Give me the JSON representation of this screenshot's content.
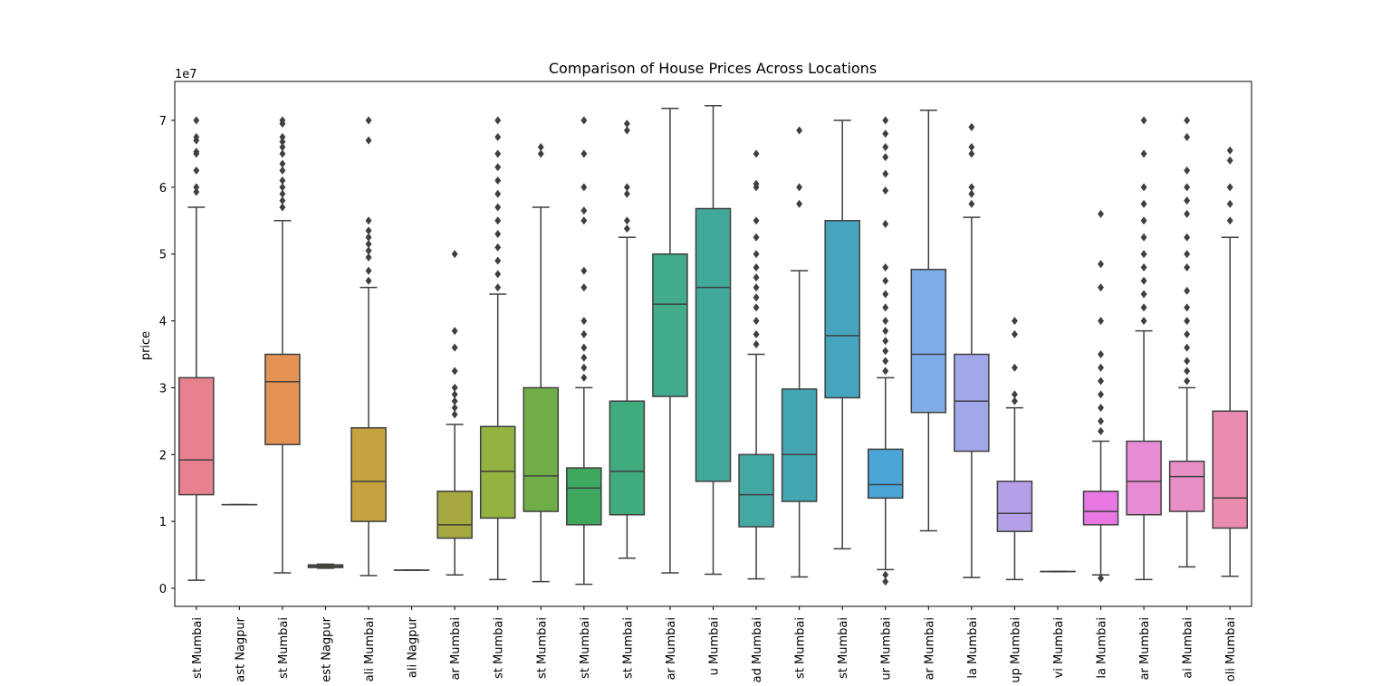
{
  "chart_data": {
    "type": "box",
    "title": "Comparison of House Prices Across Locations",
    "xlabel": "",
    "ylabel": "price",
    "y_offset_label": "1e7",
    "ylim": [
      -30000000,
      75500000
    ],
    "yticks": [
      0,
      10000000,
      20000000,
      30000000,
      40000000,
      50000000,
      60000000,
      70000000
    ],
    "ytick_labels": [
      "0",
      "1",
      "2",
      "3",
      "4",
      "5",
      "6",
      "7"
    ],
    "grid": false,
    "categories": [
      "st Mumbai",
      "ast Nagpur",
      "st Mumbai",
      "est Nagpur",
      "ali Mumbai",
      "ali Nagpur",
      "ar Mumbai",
      "st Mumbai",
      "st Mumbai",
      "st Mumbai",
      "st Mumbai",
      "ar Mumbai",
      "u Mumbai",
      "ad Mumbai",
      "st Mumbai",
      "st Mumbai",
      "ur Mumbai",
      "ar Mumbai",
      "la Mumbai",
      "up Mumbai",
      "vi Mumbai",
      "la Mumbai",
      "ar Mumbai",
      "ai Mumbai",
      "oli Mumbai"
    ],
    "boxes": [
      {
        "color": "#e8818f",
        "whislo": 1200000,
        "q1": 14000000,
        "med": 19200000,
        "q3": 31500000,
        "whishi": 57000000,
        "fliers": [
          59300000,
          60000000,
          62500000,
          65000000,
          65300000,
          67000000,
          67500000,
          70000000
        ]
      },
      {
        "color": "#e78c6f",
        "whislo": 12500000,
        "q1": 12500000,
        "med": 12500000,
        "q3": 12500000,
        "whishi": 12500000,
        "fliers": []
      },
      {
        "color": "#e39254",
        "whislo": 2300000,
        "q1": 21500000,
        "med": 30900000,
        "q3": 35000000,
        "whishi": 55000000,
        "fliers": [
          57000000,
          58000000,
          59000000,
          60000000,
          61000000,
          62500000,
          63500000,
          65000000,
          66000000,
          66800000,
          67500000,
          69500000,
          70000000
        ]
      },
      {
        "color": "#d4a03e",
        "whislo": 3000000,
        "q1": 3100000,
        "med": 3300000,
        "q3": 3500000,
        "whishi": 3600000,
        "fliers": []
      },
      {
        "color": "#c6a23e",
        "whislo": 1900000,
        "q1": 10000000,
        "med": 16000000,
        "q3": 24000000,
        "whishi": 45000000,
        "fliers": [
          46000000,
          47500000,
          49500000,
          50500000,
          51500000,
          52500000,
          53500000,
          55000000,
          67000000,
          70000000
        ]
      },
      {
        "color": "#b2a83e",
        "whislo": 2700000,
        "q1": 2700000,
        "med": 2700000,
        "q3": 2700000,
        "whishi": 2700000,
        "fliers": []
      },
      {
        "color": "#a5a93e",
        "whislo": 2000000,
        "q1": 7500000,
        "med": 9500000,
        "q3": 14500000,
        "whishi": 24500000,
        "fliers": [
          26000000,
          27000000,
          28000000,
          29000000,
          30000000,
          32500000,
          36000000,
          38500000,
          50000000
        ]
      },
      {
        "color": "#94b23f",
        "whislo": 1300000,
        "q1": 10500000,
        "med": 17500000,
        "q3": 24200000,
        "whishi": 44000000,
        "fliers": [
          45000000,
          47000000,
          49000000,
          51000000,
          53000000,
          55000000,
          57000000,
          59000000,
          61000000,
          63000000,
          65000000,
          67500000,
          70000000
        ]
      },
      {
        "color": "#6fae47",
        "whislo": 1000000,
        "q1": 11500000,
        "med": 16800000,
        "q3": 30000000,
        "whishi": 57000000,
        "fliers": [
          65000000,
          66000000
        ]
      },
      {
        "color": "#3ea95e",
        "whislo": 600000,
        "q1": 9500000,
        "med": 15000000,
        "q3": 18000000,
        "whishi": 30000000,
        "fliers": [
          31500000,
          33000000,
          34500000,
          36000000,
          38000000,
          40000000,
          45000000,
          47500000,
          55000000,
          56500000,
          60000000,
          65000000,
          70000000
        ]
      },
      {
        "color": "#40ac7e",
        "whislo": 4500000,
        "q1": 11000000,
        "med": 17500000,
        "q3": 28000000,
        "whishi": 52500000,
        "fliers": [
          53800000,
          55000000,
          59000000,
          60000000,
          68500000,
          69500000
        ]
      },
      {
        "color": "#42ab8c",
        "whislo": 2300000,
        "q1": 28700000,
        "med": 42500000,
        "q3": 50000000,
        "whishi": 71800000,
        "fliers": []
      },
      {
        "color": "#42a99a",
        "whislo": 2100000,
        "q1": 16000000,
        "med": 45000000,
        "q3": 56800000,
        "whishi": 72200000,
        "fliers": []
      },
      {
        "color": "#43a8a4",
        "whislo": 1400000,
        "q1": 9200000,
        "med": 14000000,
        "q3": 20000000,
        "whishi": 35000000,
        "fliers": [
          36500000,
          38000000,
          40000000,
          42000000,
          43500000,
          45000000,
          46500000,
          48000000,
          50000000,
          52500000,
          55000000,
          60000000,
          60500000,
          65000000
        ]
      },
      {
        "color": "#44a6b2",
        "whislo": 1700000,
        "q1": 13000000,
        "med": 20000000,
        "q3": 29800000,
        "whishi": 47500000,
        "fliers": [
          57500000,
          60000000,
          68500000
        ]
      },
      {
        "color": "#46a4be",
        "whislo": 5900000,
        "q1": 28500000,
        "med": 37800000,
        "q3": 55000000,
        "whishi": 70000000,
        "fliers": []
      },
      {
        "color": "#4aa4d6",
        "whislo": 2800000,
        "q1": 13500000,
        "med": 15500000,
        "q3": 20800000,
        "whishi": 31500000,
        "fliers": [
          1000000,
          2000000,
          32500000,
          34000000,
          35500000,
          37000000,
          38500000,
          40000000,
          42000000,
          44000000,
          46000000,
          48000000,
          54500000,
          59500000,
          62000000,
          64500000,
          66000000,
          68000000,
          70000000
        ]
      },
      {
        "color": "#7fabe6",
        "whislo": 8600000,
        "q1": 26300000,
        "med": 35000000,
        "q3": 47700000,
        "whishi": 71500000,
        "fliers": []
      },
      {
        "color": "#a1a8ea",
        "whislo": 1600000,
        "q1": 20500000,
        "med": 28000000,
        "q3": 35000000,
        "whishi": 55500000,
        "fliers": [
          57500000,
          59000000,
          60000000,
          65000000,
          66000000,
          69000000
        ]
      },
      {
        "color": "#b59fe8",
        "whislo": 1300000,
        "q1": 8500000,
        "med": 11200000,
        "q3": 16000000,
        "whishi": 27000000,
        "fliers": [
          28000000,
          29000000,
          33000000,
          38000000,
          40000000
        ]
      },
      {
        "color": "#c69ce6",
        "whislo": 2500000,
        "q1": 2500000,
        "med": 2500000,
        "q3": 2500000,
        "whishi": 2500000,
        "fliers": []
      },
      {
        "color": "#e877e4",
        "whislo": 2000000,
        "q1": 9500000,
        "med": 11500000,
        "q3": 14500000,
        "whishi": 22000000,
        "fliers": [
          1500000,
          23500000,
          25000000,
          27000000,
          29000000,
          31000000,
          33000000,
          35000000,
          40000000,
          45000000,
          48500000,
          56000000
        ]
      },
      {
        "color": "#e78cd4",
        "whislo": 1300000,
        "q1": 11000000,
        "med": 16000000,
        "q3": 22000000,
        "whishi": 38500000,
        "fliers": [
          40000000,
          42000000,
          44000000,
          46000000,
          48000000,
          50000000,
          52500000,
          55000000,
          57500000,
          60000000,
          65000000,
          70000000
        ]
      },
      {
        "color": "#e88fc6",
        "whislo": 3200000,
        "q1": 11500000,
        "med": 16700000,
        "q3": 19000000,
        "whishi": 30000000,
        "fliers": [
          31000000,
          32500000,
          34000000,
          36000000,
          38000000,
          40000000,
          42000000,
          44500000,
          48000000,
          50000000,
          52500000,
          56000000,
          58000000,
          60000000,
          62500000,
          67500000,
          70000000
        ]
      },
      {
        "color": "#e98cb0",
        "whislo": 1800000,
        "q1": 9000000,
        "med": 13500000,
        "q3": 26500000,
        "whishi": 52500000,
        "fliers": [
          55000000,
          57500000,
          60000000,
          64000000,
          65500000
        ]
      }
    ]
  }
}
